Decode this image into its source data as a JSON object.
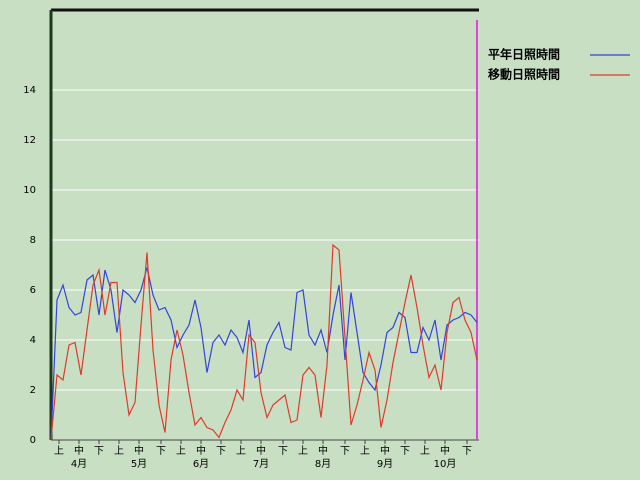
{
  "chart_data": {
    "type": "line",
    "x": [
      0,
      3,
      6,
      9,
      12,
      15,
      18,
      21,
      24,
      27,
      30,
      33,
      36,
      39,
      42,
      45,
      48,
      51,
      54,
      57,
      60,
      63,
      66,
      69,
      72,
      75,
      78,
      81,
      84,
      87,
      90,
      93,
      96,
      99,
      102,
      105,
      108,
      111,
      114,
      117,
      120,
      123,
      126,
      129,
      132,
      135,
      138,
      141,
      144,
      147,
      150,
      153,
      156,
      159,
      162,
      165,
      168,
      171,
      174,
      177,
      180,
      183,
      186,
      189,
      192,
      195,
      198,
      201,
      204,
      207,
      210,
      213
    ],
    "series": [
      {
        "name": "平年日照時間",
        "color": "#3344dd",
        "values": [
          0,
          5.6,
          6.2,
          5.3,
          5.0,
          5.1,
          6.4,
          6.6,
          5.0,
          6.8,
          6.0,
          4.3,
          6.0,
          5.8,
          5.5,
          6.0,
          6.9,
          5.8,
          5.2,
          5.3,
          4.8,
          3.7,
          4.2,
          4.6,
          5.6,
          4.5,
          2.7,
          3.9,
          4.2,
          3.8,
          4.4,
          4.1,
          3.5,
          4.8,
          2.5,
          2.7,
          3.8,
          4.3,
          4.7,
          3.7,
          3.6,
          5.9,
          6.0,
          4.2,
          3.8,
          4.4,
          3.5,
          5.0,
          6.2,
          3.2,
          5.9,
          4.3,
          2.7,
          2.3,
          2.0,
          3.0,
          4.3,
          4.5,
          5.1,
          4.9,
          3.5,
          3.5,
          4.5,
          4.0,
          4.8,
          3.2,
          4.6,
          4.8,
          4.9,
          5.1,
          5.0,
          4.7
        ]
      },
      {
        "name": "移動日照時間",
        "color": "#e03a2a",
        "values": [
          0,
          2.6,
          2.4,
          3.8,
          3.9,
          2.6,
          4.4,
          6.2,
          6.8,
          5.0,
          6.3,
          6.3,
          2.7,
          1.0,
          1.5,
          4.6,
          7.5,
          3.6,
          1.4,
          0.3,
          3.2,
          4.4,
          3.4,
          1.9,
          0.6,
          0.9,
          0.5,
          0.4,
          0.1,
          0.7,
          1.2,
          2.0,
          1.6,
          4.2,
          3.9,
          1.9,
          0.9,
          1.4,
          1.6,
          1.8,
          0.7,
          0.8,
          2.6,
          2.9,
          2.6,
          0.9,
          3.0,
          7.8,
          7.6,
          4.1,
          0.6,
          1.4,
          2.4,
          3.5,
          2.8,
          0.5,
          1.6,
          3.1,
          4.3,
          5.5,
          6.6,
          5.3,
          3.8,
          2.5,
          3.0,
          2.0,
          4.3,
          5.5,
          5.7,
          4.8,
          4.3,
          3.2
        ]
      }
    ],
    "xlim": [
      0,
      214
    ],
    "xticks": [
      {
        "value": 4,
        "label": "上"
      },
      {
        "value": 14,
        "label": "中"
      },
      {
        "value": 24,
        "label": "下"
      },
      {
        "value": 34,
        "label": "上"
      },
      {
        "value": 44,
        "label": "中"
      },
      {
        "value": 55,
        "label": "下"
      },
      {
        "value": 65,
        "label": "上"
      },
      {
        "value": 75,
        "label": "中"
      },
      {
        "value": 85,
        "label": "下"
      },
      {
        "value": 95,
        "label": "上"
      },
      {
        "value": 105,
        "label": "中"
      },
      {
        "value": 116,
        "label": "下"
      },
      {
        "value": 126,
        "label": "上"
      },
      {
        "value": 136,
        "label": "中"
      },
      {
        "value": 147,
        "label": "下"
      },
      {
        "value": 157,
        "label": "上"
      },
      {
        "value": 167,
        "label": "中"
      },
      {
        "value": 177,
        "label": "下"
      },
      {
        "value": 187,
        "label": "上"
      },
      {
        "value": 197,
        "label": "中"
      },
      {
        "value": 208,
        "label": "下"
      }
    ],
    "month_labels": [
      {
        "value": 14,
        "label": "4月"
      },
      {
        "value": 44,
        "label": "5月"
      },
      {
        "value": 75,
        "label": "6月"
      },
      {
        "value": 105,
        "label": "7月"
      },
      {
        "value": 136,
        "label": "8月"
      },
      {
        "value": 167,
        "label": "9月"
      },
      {
        "value": 197,
        "label": "10月"
      }
    ],
    "ylim": [
      0,
      17.2
    ],
    "yticks": [
      0,
      2,
      4,
      6,
      8,
      10,
      12,
      14
    ],
    "grid": true
  }
}
